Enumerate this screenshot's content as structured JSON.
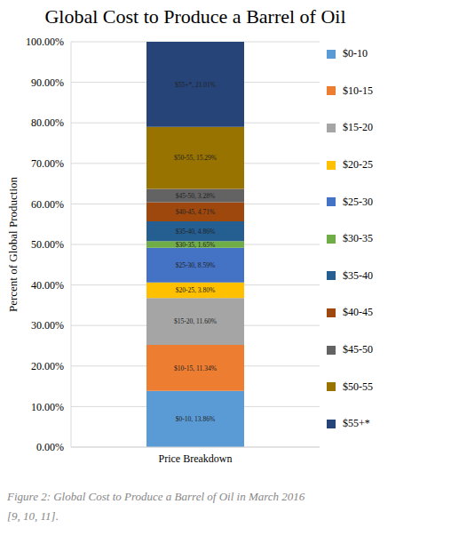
{
  "chart_data": {
    "type": "bar",
    "title": "Global Cost to Produce a Barrel of Oil",
    "caption": "Figure 2: Global Cost to Produce a Barrel of Oil in March 2016 [9, 10, 11].",
    "y_label": "Percent of Global Production",
    "categories": [
      "Price Breakdown"
    ],
    "stacked": true,
    "data_labels": true,
    "legend": "right",
    "grid": true,
    "ylim": [
      0,
      100
    ],
    "yticks": [
      {
        "value": 0,
        "label": "0.00%"
      },
      {
        "value": 10,
        "label": "10.00%"
      },
      {
        "value": 20,
        "label": "20.00%"
      },
      {
        "value": 30,
        "label": "30.00%"
      },
      {
        "value": 40,
        "label": "40.00%"
      },
      {
        "value": 50,
        "label": "50.00%"
      },
      {
        "value": 60,
        "label": "60.00%"
      },
      {
        "value": 70,
        "label": "70.00%"
      },
      {
        "value": 80,
        "label": "80.00%"
      },
      {
        "value": 90,
        "label": "90.00%"
      },
      {
        "value": 100,
        "label": "100.00%"
      }
    ],
    "series": [
      {
        "name": "$0-10",
        "color": "#5b9bd5",
        "values": [
          13.86
        ],
        "value_labels": [
          "$0-10, 13.86%"
        ]
      },
      {
        "name": "$10-15",
        "color": "#ed7d31",
        "values": [
          11.34
        ],
        "value_labels": [
          "$10-15, 11.34%"
        ]
      },
      {
        "name": "$15-20",
        "color": "#a5a5a5",
        "values": [
          11.6
        ],
        "value_labels": [
          "$15-20, 11.60%"
        ]
      },
      {
        "name": "$20-25",
        "color": "#ffc000",
        "values": [
          3.8
        ],
        "value_labels": [
          "$20-25, 3.80%"
        ]
      },
      {
        "name": "$25-30",
        "color": "#4472c4",
        "values": [
          8.59
        ],
        "value_labels": [
          "$25-30, 8.59%"
        ]
      },
      {
        "name": "$30-35",
        "color": "#70ad47",
        "values": [
          1.65
        ],
        "value_labels": [
          "$30-35, 1.65%"
        ]
      },
      {
        "name": "$35-40",
        "color": "#255e91",
        "values": [
          4.86
        ],
        "value_labels": [
          "$35-40, 4.86%"
        ]
      },
      {
        "name": "$40-45",
        "color": "#9e480e",
        "values": [
          4.71
        ],
        "value_labels": [
          "$40-45, 4.71%"
        ]
      },
      {
        "name": "$45-50",
        "color": "#636363",
        "values": [
          3.28
        ],
        "value_labels": [
          "$45-50, 3.28%"
        ]
      },
      {
        "name": "$50-55",
        "color": "#997300",
        "values": [
          15.29
        ],
        "value_labels": [
          "$50-55, 15.29%"
        ]
      },
      {
        "name": "$55+*",
        "color": "#264478",
        "values": [
          21.01
        ],
        "value_labels": [
          "$55+*, 21.01%"
        ]
      }
    ]
  }
}
